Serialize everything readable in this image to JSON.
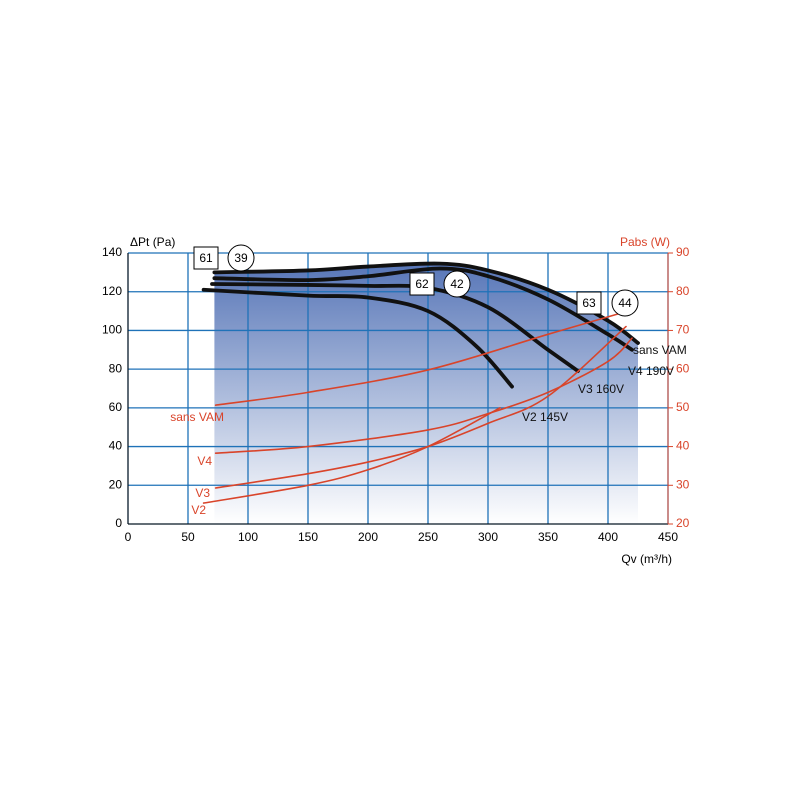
{
  "chart_data": {
    "type": "line",
    "x_label": "Qv (m³/h)",
    "y_label": "ΔPt (Pa)",
    "y2_label": "Pabs (W)",
    "xlim": [
      0,
      450
    ],
    "xticks": [
      0,
      50,
      100,
      150,
      200,
      250,
      300,
      350,
      400,
      450
    ],
    "ylim": [
      0,
      140
    ],
    "yticks": [
      0,
      20,
      40,
      60,
      80,
      100,
      120,
      140
    ],
    "y2lim": [
      20,
      90
    ],
    "y2ticks": [
      20,
      30,
      40,
      50,
      60,
      70,
      80,
      90
    ],
    "grid": true,
    "annotations": [
      "61",
      "39",
      "62",
      "42",
      "63",
      "44"
    ],
    "series": [
      {
        "name": "sans VAM",
        "color": "#111111",
        "x": [
          72,
          150,
          200,
          260,
          300,
          350,
          400,
          425
        ],
        "values": [
          130,
          131,
          133,
          134.5,
          131,
          121,
          105,
          93.5
        ]
      },
      {
        "name": "V4 190V",
        "color": "#111111",
        "x": [
          72,
          150,
          200,
          260,
          300,
          350,
          400,
          420
        ],
        "values": [
          127,
          126,
          128,
          132,
          128,
          116,
          98,
          90
        ]
      },
      {
        "name": "V3 160V",
        "color": "#111111",
        "x": [
          70,
          150,
          200,
          250,
          300,
          350,
          375
        ],
        "values": [
          124,
          123.5,
          123,
          122,
          112,
          90,
          79
        ]
      },
      {
        "name": "V2 145V",
        "color": "#111111",
        "x": [
          63,
          150,
          200,
          250,
          290,
          320
        ],
        "values": [
          121,
          118,
          117,
          110,
          92,
          71
        ]
      },
      {
        "name": "sans VAM",
        "color": "#d9442a",
        "axis": "y2",
        "x": [
          73,
          150,
          250,
          350,
          420
        ],
        "values": [
          50.7,
          54,
          59.8,
          69,
          75.3
        ]
      },
      {
        "name": "V4",
        "color": "#d9442a",
        "axis": "y2",
        "x": [
          73,
          150,
          250,
          300,
          350,
          400,
          420
        ],
        "values": [
          38.3,
          40,
          44.3,
          48.5,
          54,
          62,
          68
        ]
      },
      {
        "name": "V3",
        "color": "#d9442a",
        "axis": "y2",
        "x": [
          73,
          150,
          200,
          250,
          300,
          350,
          415
        ],
        "values": [
          29.3,
          33,
          36,
          40,
          46,
          53,
          71
        ]
      },
      {
        "name": "V2",
        "color": "#d9442a",
        "axis": "y2",
        "x": [
          63,
          150,
          200,
          250,
          310
        ],
        "values": [
          25.4,
          30,
          34,
          40,
          50
        ]
      }
    ]
  }
}
